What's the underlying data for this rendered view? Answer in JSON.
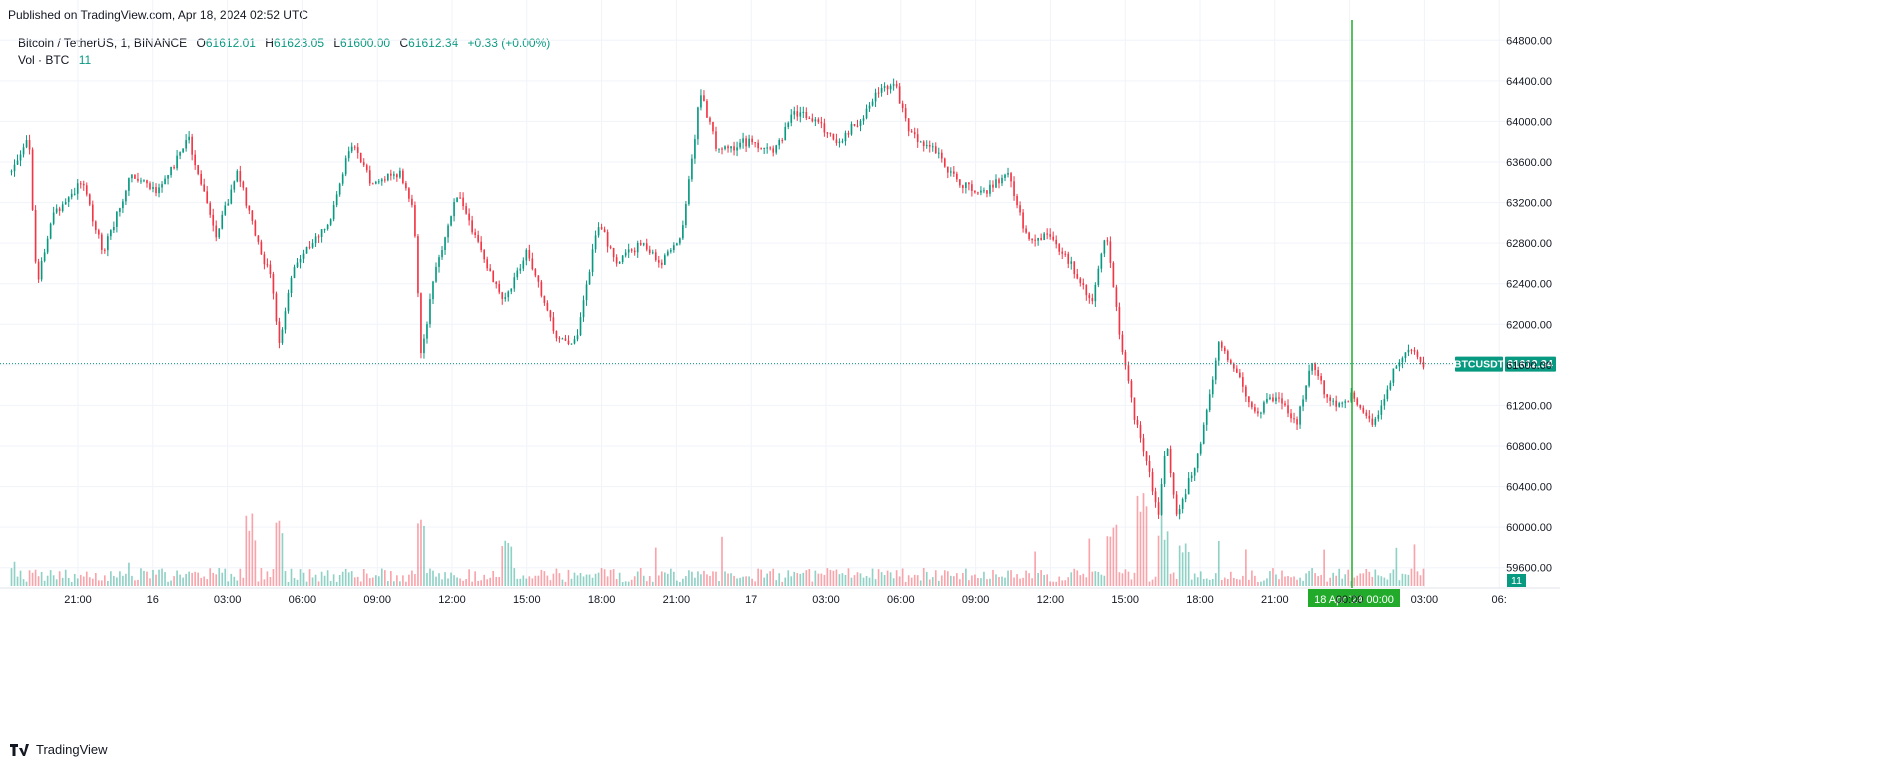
{
  "header": {
    "published": "Published on TradingView.com, Apr 18, 2024 02:52 UTC"
  },
  "legend": {
    "symbol": "Bitcoin / TetherUS, 1, BINANCE",
    "open_label": "O",
    "open": "61612.01",
    "high_label": "H",
    "high": "61623.05",
    "low_label": "L",
    "low": "61600.00",
    "close_label": "C",
    "close": "61612.34",
    "change": "+0.33 (+0.00%)",
    "vol_label": "Vol · BTC",
    "vol_value": "11"
  },
  "footer": {
    "brand": "TradingView"
  },
  "colors": {
    "up": "#089981",
    "down": "#f23645",
    "grid": "#f0f3fa",
    "axis_text": "#131722",
    "cursor": "#22ab2a",
    "price_tag": "#089981"
  },
  "chart_data": {
    "type": "candlestick",
    "symbol": "BTCUSDT",
    "last_price": 61612.34,
    "last_volume": 11,
    "ylim": [
      59400,
      65000
    ],
    "y_ticks": [
      "64800.00",
      "64400.00",
      "64000.00",
      "63600.00",
      "63200.00",
      "62800.00",
      "62400.00",
      "62000.00",
      "61600.00",
      "61200.00",
      "60800.00",
      "60400.00",
      "60000.00",
      "59600.00"
    ],
    "x_ticks": [
      "21:00",
      "16",
      "03:00",
      "06:00",
      "09:00",
      "12:00",
      "15:00",
      "18:00",
      "21:00",
      "17",
      "03:00",
      "06:00",
      "09:00",
      "12:00",
      "15:00",
      "18:00",
      "21:00",
      "00:00",
      "03:00",
      "06:"
    ],
    "cursor_label": "18 Apr '24  00:00",
    "price_path": [
      {
        "t": 0,
        "p": 63500
      },
      {
        "t": 0.012,
        "p": 63900
      },
      {
        "t": 0.018,
        "p": 62400
      },
      {
        "t": 0.03,
        "p": 63100
      },
      {
        "t": 0.05,
        "p": 63400
      },
      {
        "t": 0.065,
        "p": 62700
      },
      {
        "t": 0.085,
        "p": 63500
      },
      {
        "t": 0.105,
        "p": 63300
      },
      {
        "t": 0.125,
        "p": 63850
      },
      {
        "t": 0.145,
        "p": 62850
      },
      {
        "t": 0.16,
        "p": 63500
      },
      {
        "t": 0.175,
        "p": 62800
      },
      {
        "t": 0.185,
        "p": 62400
      },
      {
        "t": 0.19,
        "p": 61750
      },
      {
        "t": 0.2,
        "p": 62600
      },
      {
        "t": 0.225,
        "p": 63000
      },
      {
        "t": 0.24,
        "p": 63800
      },
      {
        "t": 0.255,
        "p": 63400
      },
      {
        "t": 0.275,
        "p": 63500
      },
      {
        "t": 0.285,
        "p": 63100
      },
      {
        "t": 0.29,
        "p": 61700
      },
      {
        "t": 0.3,
        "p": 62500
      },
      {
        "t": 0.315,
        "p": 63300
      },
      {
        "t": 0.33,
        "p": 62800
      },
      {
        "t": 0.348,
        "p": 62200
      },
      {
        "t": 0.365,
        "p": 62700
      },
      {
        "t": 0.385,
        "p": 61900
      },
      {
        "t": 0.4,
        "p": 61800
      },
      {
        "t": 0.415,
        "p": 63000
      },
      {
        "t": 0.43,
        "p": 62600
      },
      {
        "t": 0.445,
        "p": 62800
      },
      {
        "t": 0.46,
        "p": 62600
      },
      {
        "t": 0.475,
        "p": 62900
      },
      {
        "t": 0.488,
        "p": 64300
      },
      {
        "t": 0.5,
        "p": 63700
      },
      {
        "t": 0.52,
        "p": 63800
      },
      {
        "t": 0.54,
        "p": 63700
      },
      {
        "t": 0.555,
        "p": 64100
      },
      {
        "t": 0.57,
        "p": 64000
      },
      {
        "t": 0.585,
        "p": 63800
      },
      {
        "t": 0.6,
        "p": 64000
      },
      {
        "t": 0.615,
        "p": 64300
      },
      {
        "t": 0.625,
        "p": 64400
      },
      {
        "t": 0.635,
        "p": 63900
      },
      {
        "t": 0.655,
        "p": 63700
      },
      {
        "t": 0.67,
        "p": 63400
      },
      {
        "t": 0.69,
        "p": 63300
      },
      {
        "t": 0.705,
        "p": 63500
      },
      {
        "t": 0.72,
        "p": 62800
      },
      {
        "t": 0.735,
        "p": 62900
      },
      {
        "t": 0.75,
        "p": 62600
      },
      {
        "t": 0.765,
        "p": 62200
      },
      {
        "t": 0.775,
        "p": 62900
      },
      {
        "t": 0.785,
        "p": 61900
      },
      {
        "t": 0.795,
        "p": 61100
      },
      {
        "t": 0.805,
        "p": 60600
      },
      {
        "t": 0.812,
        "p": 60100
      },
      {
        "t": 0.818,
        "p": 60900
      },
      {
        "t": 0.825,
        "p": 60100
      },
      {
        "t": 0.84,
        "p": 60700
      },
      {
        "t": 0.855,
        "p": 61800
      },
      {
        "t": 0.865,
        "p": 61600
      },
      {
        "t": 0.88,
        "p": 61100
      },
      {
        "t": 0.895,
        "p": 61300
      },
      {
        "t": 0.91,
        "p": 61000
      },
      {
        "t": 0.92,
        "p": 61600
      },
      {
        "t": 0.935,
        "p": 61200
      },
      {
        "t": 0.95,
        "p": 61300
      },
      {
        "t": 0.965,
        "p": 61000
      },
      {
        "t": 0.98,
        "p": 61600
      },
      {
        "t": 0.99,
        "p": 61750
      },
      {
        "t": 1.0,
        "p": 61612
      }
    ],
    "volume_spikes": [
      {
        "t": 0.17,
        "v": "high"
      },
      {
        "t": 0.19,
        "v": "high"
      },
      {
        "t": 0.29,
        "v": "high"
      },
      {
        "t": 0.35,
        "v": "medium"
      },
      {
        "t": 0.78,
        "v": "high"
      },
      {
        "t": 0.8,
        "v": "very-high"
      },
      {
        "t": 0.815,
        "v": "high"
      },
      {
        "t": 0.83,
        "v": "medium"
      }
    ]
  }
}
